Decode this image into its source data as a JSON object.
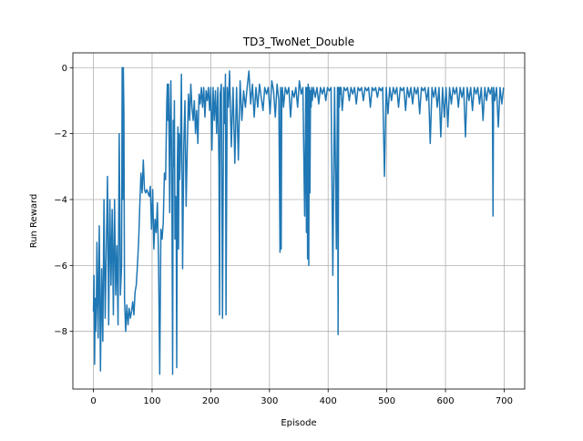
{
  "chart_data": {
    "type": "line",
    "title": "TD3_TwoNet_Double",
    "xlabel": "Episode",
    "ylabel": "Run Reward",
    "xlim": [
      -35,
      735
    ],
    "ylim": [
      -9.75,
      0.45
    ],
    "xticks": [
      0,
      100,
      200,
      300,
      400,
      500,
      600,
      700
    ],
    "yticks": [
      0,
      -2,
      -4,
      -6,
      -8
    ],
    "xtick_labels": [
      "0",
      "100",
      "200",
      "300",
      "400",
      "500",
      "600",
      "700"
    ],
    "ytick_labels": [
      "0",
      "−2",
      "−4",
      "−6",
      "−8"
    ],
    "grid": true,
    "line_color": "#1f77b4",
    "series": [
      {
        "x": [
          0,
          1,
          2,
          3,
          4,
          5,
          6,
          8,
          10,
          12,
          14,
          16,
          18,
          20,
          22,
          24,
          26,
          28,
          30,
          32,
          34,
          36,
          38,
          40,
          42,
          44,
          46,
          48,
          49,
          50,
          51,
          52,
          53,
          55,
          57,
          59,
          61,
          63,
          65,
          67,
          69,
          71,
          73,
          75,
          77,
          79,
          81,
          83,
          85,
          87,
          89,
          91,
          93,
          95,
          97,
          99,
          101,
          103,
          105,
          107,
          109,
          111,
          113,
          115,
          117,
          119,
          121,
          123,
          125,
          126,
          127,
          128,
          129,
          130,
          131,
          132,
          133,
          134,
          135,
          136,
          137,
          138,
          139,
          140,
          141,
          142,
          143,
          144,
          145,
          146,
          147,
          148,
          150,
          152,
          154,
          156,
          158,
          160,
          162,
          164,
          166,
          168,
          170,
          172,
          174,
          176,
          178,
          180,
          182,
          184,
          186,
          188,
          190,
          192,
          194,
          196,
          198,
          200,
          202,
          204,
          206,
          208,
          210,
          212,
          214,
          215,
          216,
          218,
          220,
          222,
          224,
          225,
          226,
          228,
          230,
          232,
          235,
          238,
          241,
          244,
          247,
          250,
          253,
          256,
          259,
          262,
          265,
          268,
          271,
          274,
          277,
          280,
          283,
          286,
          289,
          292,
          295,
          298,
          301,
          304,
          307,
          310,
          313,
          316,
          318,
          319,
          320,
          321,
          322,
          324,
          327,
          330,
          333,
          336,
          339,
          342,
          345,
          348,
          351,
          354,
          357,
          360,
          362,
          363,
          364,
          365,
          366,
          367,
          368,
          369,
          370,
          371,
          372,
          373,
          375,
          378,
          381,
          384,
          387,
          390,
          393,
          396,
          399,
          402,
          405,
          408,
          411,
          414,
          416,
          417,
          418,
          419,
          420,
          421,
          422,
          424,
          427,
          430,
          433,
          436,
          439,
          442,
          445,
          448,
          451,
          454,
          457,
          460,
          463,
          466,
          469,
          472,
          475,
          478,
          481,
          484,
          487,
          490,
          493,
          496,
          499,
          502,
          505,
          508,
          511,
          514,
          517,
          520,
          523,
          526,
          529,
          532,
          535,
          538,
          541,
          544,
          547,
          550,
          553,
          556,
          559,
          562,
          565,
          568,
          571,
          574,
          577,
          580,
          583,
          586,
          589,
          592,
          595,
          598,
          601,
          604,
          607,
          610,
          613,
          616,
          619,
          622,
          625,
          628,
          631,
          634,
          637,
          640,
          643,
          646,
          649,
          652,
          655,
          658,
          661,
          664,
          667,
          670,
          673,
          676,
          679,
          680,
          681,
          682,
          684,
          687,
          690,
          693,
          696,
          699
        ],
        "y": [
          -7.4,
          -6.3,
          -9.0,
          -7.0,
          -8.0,
          -7.2,
          -5.3,
          -8.2,
          -4.8,
          -9.2,
          -6.1,
          -8.3,
          -4.0,
          -7.6,
          -5.5,
          -3.3,
          -7.8,
          -4.0,
          -6.6,
          -4.3,
          -7.5,
          -4.0,
          -6.9,
          -5.4,
          -7.8,
          -2.0,
          -6.9,
          -6.0,
          0.0,
          -4.0,
          0.0,
          -1.4,
          -7.0,
          -8.0,
          -7.2,
          -7.8,
          -7.3,
          -7.6,
          -7.4,
          -7.1,
          -7.5,
          -6.8,
          -6.6,
          -6.0,
          -5.3,
          -4.2,
          -3.2,
          -3.8,
          -2.8,
          -3.7,
          -3.8,
          -3.7,
          -3.8,
          -3.9,
          -3.6,
          -4.9,
          -3.7,
          -5.5,
          -4.6,
          -5.0,
          -4.1,
          -5.8,
          -9.3,
          -4.9,
          -5.2,
          -4.7,
          -3.2,
          -3.4,
          -1.1,
          -0.5,
          -1.6,
          -0.5,
          -2.2,
          -4.4,
          -1.4,
          -0.4,
          -2.2,
          -4.8,
          -9.3,
          -1.6,
          -3.0,
          -1.0,
          -5.2,
          -3.9,
          -4.0,
          -9.1,
          -3.0,
          -1.8,
          -5.5,
          -2.0,
          -3.4,
          -2.9,
          -0.2,
          -6.1,
          -2.4,
          -1.0,
          -4.2,
          -2.4,
          -0.8,
          -1.6,
          -0.5,
          -1.2,
          -1.6,
          -1.0,
          -2.0,
          -1.3,
          -2.3,
          -0.8,
          -1.1,
          -0.6,
          -1.2,
          -0.6,
          -1.5,
          -0.7,
          -1.0,
          -0.6,
          -1.3,
          -0.6,
          -2.5,
          -0.6,
          -1.6,
          -0.7,
          -2.0,
          -0.6,
          -3.0,
          -7.5,
          -0.8,
          -0.5,
          -7.6,
          -0.6,
          -1.7,
          -0.2,
          -7.5,
          -0.6,
          -1.2,
          -0.1,
          -2.4,
          -0.6,
          -2.9,
          -0.6,
          -2.8,
          -0.4,
          -1.6,
          -0.7,
          -1.2,
          -0.6,
          -0.1,
          -1.1,
          -0.5,
          -1.5,
          -0.6,
          -1.2,
          -0.5,
          -0.9,
          -1.3,
          -0.6,
          -0.8,
          -0.6,
          -1.4,
          -0.4,
          -0.7,
          -1.5,
          -0.5,
          -1.0,
          -5.6,
          -0.6,
          -5.5,
          -0.8,
          -0.6,
          -1.2,
          -0.6,
          -0.8,
          -0.6,
          -1.5,
          -0.7,
          -0.9,
          -0.6,
          -1.2,
          -0.4,
          -0.8,
          -0.6,
          -4.5,
          -0.6,
          -5.0,
          -0.6,
          -5.8,
          -0.5,
          -6.0,
          -0.6,
          -3.8,
          -0.7,
          -1.2,
          -0.6,
          -1.0,
          -0.6,
          -0.9,
          -0.6,
          -1.1,
          -0.6,
          -0.8,
          -0.6,
          -1.0,
          -0.6,
          -0.7,
          -0.6,
          -6.3,
          -0.6,
          -5.5,
          -0.6,
          -8.1,
          -0.6,
          -1.2,
          -0.6,
          -0.8,
          -0.6,
          -1.3,
          -0.6,
          -0.7,
          -0.6,
          -1.0,
          -0.6,
          -0.8,
          -0.6,
          -1.1,
          -0.6,
          -0.7,
          -0.6,
          -1.0,
          -0.6,
          -0.7,
          -0.6,
          -1.2,
          -0.6,
          -0.7,
          -0.6,
          -0.9,
          -0.6,
          -0.7,
          -0.6,
          -3.3,
          -0.6,
          -1.4,
          -0.6,
          -1.0,
          -0.6,
          -0.8,
          -0.6,
          -1.2,
          -0.6,
          -0.7,
          -0.6,
          -1.3,
          -0.6,
          -0.9,
          -0.6,
          -1.1,
          -0.6,
          -0.8,
          -0.6,
          -1.4,
          -0.6,
          -0.7,
          -0.6,
          -1.0,
          -0.6,
          -2.3,
          -0.6,
          -0.9,
          -0.6,
          -1.2,
          -0.6,
          -2.1,
          -0.6,
          -1.5,
          -0.6,
          -1.8,
          -0.6,
          -1.1,
          -0.6,
          -0.8,
          -0.6,
          -1.2,
          -0.6,
          -0.9,
          -0.6,
          -2.1,
          -0.6,
          -1.0,
          -0.6,
          -1.3,
          -0.6,
          -0.8,
          -0.6,
          -1.1,
          -0.6,
          -1.6,
          -0.6,
          -1.0,
          -0.6,
          -0.8,
          -0.6,
          -1.2,
          -4.5,
          -0.6,
          -1.0,
          -0.6,
          -1.8,
          -0.6,
          -1.1,
          -0.6
        ]
      }
    ]
  }
}
